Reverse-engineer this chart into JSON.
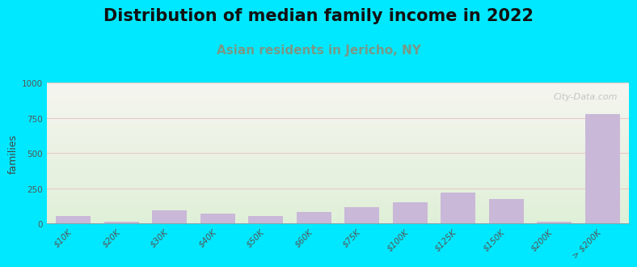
{
  "title": "Distribution of median family income in 2022",
  "subtitle": "Asian residents in Jericho, NY",
  "ylabel": "families",
  "categories": [
    "$10K",
    "$20K",
    "$30K",
    "$40K",
    "$50K",
    "$60K",
    "$75K",
    "$100K",
    "$125K",
    "$150K",
    "$200K",
    "> $200K"
  ],
  "values": [
    55,
    12,
    90,
    70,
    55,
    80,
    115,
    150,
    220,
    175,
    10,
    775
  ],
  "bar_color": "#c9b8d8",
  "bar_edgecolor": "none",
  "background_color": "#00e8ff",
  "plot_bg_top": "#f5f5f0",
  "plot_bg_bottom": "#e0f0d8",
  "grid_color": "#e8c8c8",
  "ylim": [
    0,
    1000
  ],
  "yticks": [
    0,
    250,
    500,
    750,
    1000
  ],
  "title_fontsize": 15,
  "subtitle_fontsize": 11,
  "ylabel_fontsize": 9,
  "tick_fontsize": 7.5,
  "watermark": "City-Data.com"
}
